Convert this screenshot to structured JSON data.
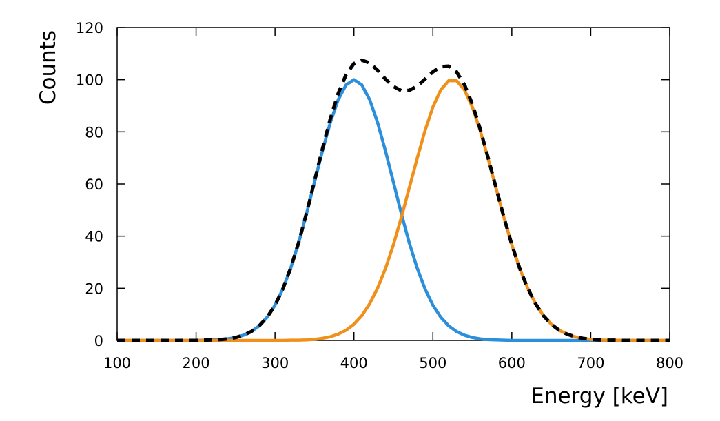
{
  "chart_data": {
    "type": "line",
    "xlabel": "Energy [keV]",
    "ylabel": "Counts",
    "xlim": [
      100,
      800
    ],
    "xticks": [
      100,
      200,
      300,
      400,
      500,
      600,
      700,
      800
    ],
    "ylim": [
      0,
      120
    ],
    "yticks": [
      0,
      20,
      40,
      60,
      80,
      100,
      120
    ],
    "x": [
      100,
      110,
      120,
      130,
      140,
      150,
      160,
      170,
      180,
      190,
      200,
      210,
      220,
      230,
      240,
      250,
      260,
      270,
      280,
      290,
      300,
      310,
      320,
      330,
      340,
      350,
      360,
      370,
      380,
      390,
      400,
      410,
      420,
      430,
      440,
      450,
      460,
      470,
      480,
      490,
      500,
      510,
      520,
      530,
      540,
      550,
      560,
      570,
      580,
      590,
      600,
      610,
      620,
      630,
      640,
      650,
      660,
      670,
      680,
      690,
      700,
      710,
      720,
      730,
      740,
      750,
      760,
      770,
      780,
      790,
      800
    ],
    "series": [
      {
        "color": "#2b8fdc",
        "style": "solid",
        "values": [
          0,
          0,
          0,
          0,
          0,
          0,
          0,
          0,
          0,
          0,
          0,
          0.1,
          0.2,
          0.3,
          0.6,
          1.1,
          2.0,
          3.4,
          5.6,
          8.9,
          13.5,
          19.8,
          27.8,
          37.5,
          48.7,
          60.7,
          72.6,
          83.5,
          92.3,
          98.0,
          100,
          98.0,
          92.3,
          83.5,
          72.6,
          60.7,
          48.7,
          37.5,
          27.8,
          19.8,
          13.5,
          8.9,
          5.6,
          3.4,
          2.0,
          1.1,
          0.6,
          0.3,
          0.2,
          0.1,
          0,
          0,
          0,
          0,
          0,
          0,
          0,
          0,
          0,
          0,
          0,
          0,
          0,
          0,
          0,
          0,
          0,
          0,
          0,
          0,
          0
        ]
      },
      {
        "color": "#f0901a",
        "style": "solid",
        "values": [
          0,
          0,
          0,
          0,
          0,
          0,
          0,
          0,
          0,
          0,
          0,
          0,
          0,
          0,
          0,
          0,
          0,
          0,
          0,
          0,
          0,
          0,
          0.1,
          0.1,
          0.2,
          0.4,
          0.8,
          1.4,
          2.4,
          3.9,
          6.2,
          9.5,
          14.1,
          20.1,
          27.6,
          36.7,
          47.1,
          58.4,
          69.7,
          80.4,
          89.5,
          96.1,
          99.6,
          99.6,
          96.1,
          89.5,
          80.4,
          69.7,
          58.4,
          47.1,
          36.7,
          27.6,
          20.1,
          14.1,
          9.5,
          6.2,
          3.9,
          2.4,
          1.4,
          0.8,
          0.4,
          0.2,
          0.1,
          0.1,
          0,
          0,
          0,
          0,
          0,
          0,
          0
        ]
      },
      {
        "color": "#000000",
        "style": "dashed",
        "values": [
          0,
          0,
          0,
          0,
          0,
          0,
          0,
          0,
          0,
          0,
          0,
          0.1,
          0.2,
          0.3,
          0.6,
          1.1,
          2.0,
          3.4,
          5.6,
          8.9,
          13.5,
          19.8,
          27.9,
          37.6,
          48.9,
          61.1,
          73.4,
          84.9,
          94.7,
          101.9,
          106.2,
          107.5,
          106.4,
          103.6,
          100.2,
          97.4,
          95.8,
          95.9,
          97.5,
          100.2,
          103.0,
          105.0,
          105.2,
          103.0,
          98.1,
          90.6,
          81.0,
          70.0,
          58.6,
          47.2,
          36.7,
          27.6,
          20.1,
          14.1,
          9.5,
          6.2,
          3.9,
          2.4,
          1.4,
          0.8,
          0.4,
          0.2,
          0.1,
          0.1,
          0,
          0,
          0,
          0,
          0,
          0,
          0
        ]
      }
    ]
  }
}
